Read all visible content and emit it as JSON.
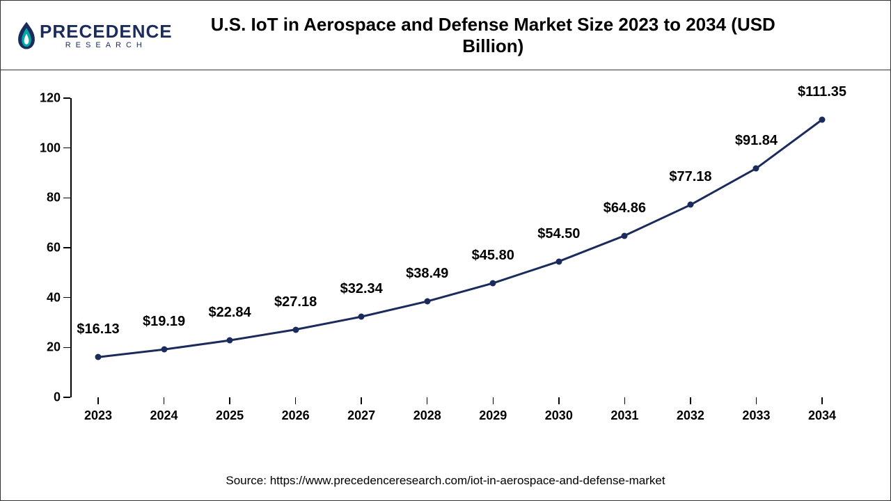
{
  "header": {
    "logo_text": "PRECEDENCE",
    "logo_sub": "RESEARCH",
    "title": "U.S. IoT in Aerospace and Defense Market Size 2023 to 2034 (USD Billion)"
  },
  "chart": {
    "type": "line",
    "categories": [
      "2023",
      "2024",
      "2025",
      "2026",
      "2027",
      "2028",
      "2029",
      "2030",
      "2031",
      "2032",
      "2033",
      "2034"
    ],
    "values": [
      16.13,
      19.19,
      22.84,
      27.18,
      32.34,
      38.49,
      45.8,
      54.5,
      64.86,
      77.18,
      91.84,
      111.35
    ],
    "value_labels": [
      "$16.13",
      "$19.19",
      "$22.84",
      "$27.18",
      "$32.34",
      "$38.49",
      "$45.80",
      "$54.50",
      "$64.86",
      "$77.18",
      "$91.84",
      "$111.35"
    ],
    "ylim": [
      0,
      120
    ],
    "ytick_step": 20,
    "yticks": [
      0,
      20,
      40,
      60,
      80,
      100,
      120
    ],
    "line_color": "#1a2b5c",
    "line_width": 3,
    "marker_color": "#1a2b5c",
    "marker_size": 9,
    "background_color": "#ffffff",
    "label_fontsize": 18,
    "value_label_fontsize": 20,
    "axis_color": "#000000",
    "value_label_offset": 28
  },
  "source": "Source: https://www.precedenceresearch.com/iot-in-aerospace-and-defense-market",
  "colors": {
    "brand": "#1a2b5c",
    "accent": "#00a9a5"
  }
}
